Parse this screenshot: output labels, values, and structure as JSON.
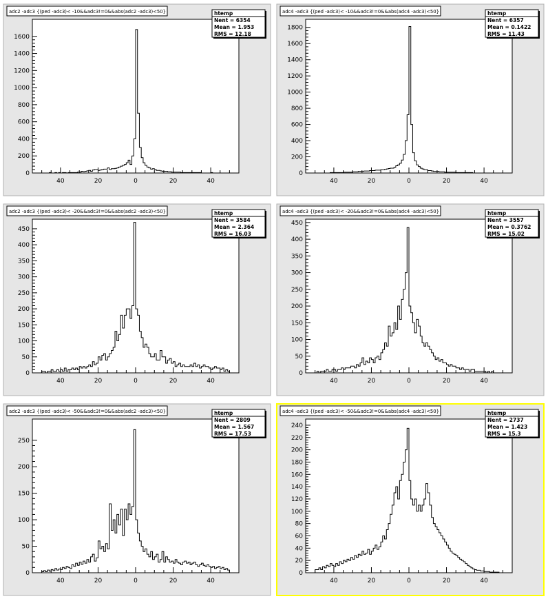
{
  "canvas": {
    "background": "#ffffff",
    "pad_fill": "#e6e6e6",
    "frame_fill": "#ffffff",
    "line_color": "#000000",
    "selected_border": "#ffff00"
  },
  "chart_data": [
    {
      "type": "histogram",
      "title": "adc2 -adc3 {(ped -adc3)< -10&&adc3!=0&&abs(adc2 -adc3)<50}",
      "stats": {
        "name": "htemp",
        "entries": "6354",
        "mean": "1.953",
        "rms": "12.18"
      },
      "xlim": [
        -55,
        55
      ],
      "ylim": [
        0,
        1800
      ],
      "xticks": [
        -40,
        -20,
        0,
        20,
        40
      ],
      "xtick_labels": [
        "40",
        "20",
        "0",
        "20",
        "40"
      ],
      "yticks": [
        0,
        200,
        400,
        600,
        800,
        1000,
        1200,
        1400,
        1600
      ],
      "bins": {
        "start": -50,
        "width": 1,
        "values": [
          0,
          0,
          0,
          0,
          5,
          0,
          0,
          5,
          0,
          5,
          0,
          5,
          5,
          0,
          5,
          5,
          5,
          5,
          5,
          10,
          10,
          20,
          15,
          20,
          25,
          30,
          20,
          35,
          40,
          40,
          30,
          35,
          40,
          45,
          45,
          60,
          40,
          50,
          50,
          55,
          60,
          70,
          80,
          90,
          100,
          120,
          150,
          100,
          200,
          400,
          1680,
          700,
          300,
          180,
          120,
          90,
          70,
          60,
          45,
          50,
          40,
          30,
          30,
          25,
          20,
          20,
          20,
          15,
          15,
          10,
          10,
          10,
          10,
          10,
          5,
          5,
          5,
          5,
          5,
          5,
          5,
          5,
          5,
          5,
          5,
          0,
          0,
          0,
          0,
          0,
          5,
          0,
          0,
          0,
          0,
          0,
          0,
          0,
          0,
          0
        ]
      }
    },
    {
      "type": "histogram",
      "title": "adc4 -adc3 {(ped -adc3)< -10&&adc3!=0&&abs(adc4 -adc3)<50}",
      "stats": {
        "name": "htemp",
        "entries": "6357",
        "mean": "0.1422",
        "rms": "11.43"
      },
      "xlim": [
        -55,
        55
      ],
      "ylim": [
        0,
        1900
      ],
      "xticks": [
        -40,
        -20,
        0,
        20,
        40
      ],
      "xtick_labels": [
        "40",
        "20",
        "0",
        "20",
        "40"
      ],
      "yticks": [
        0,
        200,
        400,
        600,
        800,
        1000,
        1200,
        1400,
        1600,
        1800
      ],
      "bins": {
        "start": -50,
        "width": 1,
        "values": [
          0,
          0,
          0,
          0,
          0,
          0,
          0,
          0,
          5,
          5,
          5,
          5,
          5,
          5,
          5,
          10,
          10,
          10,
          10,
          10,
          15,
          15,
          15,
          20,
          20,
          20,
          25,
          25,
          25,
          30,
          30,
          30,
          35,
          35,
          35,
          40,
          40,
          45,
          50,
          55,
          60,
          60,
          70,
          90,
          100,
          120,
          160,
          230,
          400,
          720,
          1810,
          600,
          250,
          150,
          100,
          80,
          60,
          50,
          40,
          40,
          30,
          30,
          25,
          20,
          20,
          20,
          15,
          15,
          15,
          10,
          10,
          10,
          10,
          10,
          10,
          5,
          5,
          5,
          5,
          5,
          5,
          5,
          5,
          5,
          0,
          0,
          0,
          0,
          0,
          0,
          0,
          0,
          0,
          0,
          0,
          0,
          0,
          0,
          0,
          0
        ]
      }
    },
    {
      "type": "histogram",
      "title": "adc2 -adc3 {(ped -adc3)< -20&&adc3!=0&&abs(adc2 -adc3)<50}",
      "stats": {
        "name": "htemp",
        "entries": "3584",
        "mean": "2.364",
        "rms": "16.03"
      },
      "xlim": [
        -55,
        55
      ],
      "ylim": [
        0,
        480
      ],
      "xticks": [
        -40,
        -20,
        0,
        20,
        40
      ],
      "xtick_labels": [
        "40",
        "20",
        "0",
        "20",
        "40"
      ],
      "yticks": [
        0,
        50,
        100,
        150,
        200,
        250,
        300,
        350,
        400,
        450
      ],
      "bins": {
        "start": -50,
        "width": 1,
        "values": [
          5,
          5,
          0,
          5,
          5,
          10,
          5,
          5,
          10,
          5,
          10,
          5,
          15,
          5,
          10,
          10,
          15,
          10,
          15,
          10,
          20,
          15,
          20,
          15,
          20,
          25,
          20,
          35,
          25,
          30,
          50,
          40,
          55,
          60,
          40,
          50,
          60,
          70,
          80,
          130,
          100,
          120,
          180,
          140,
          180,
          200,
          200,
          170,
          210,
          470,
          200,
          180,
          130,
          110,
          80,
          90,
          80,
          60,
          50,
          50,
          60,
          40,
          40,
          70,
          50,
          50,
          30,
          40,
          45,
          30,
          35,
          20,
          25,
          30,
          20,
          25,
          20,
          20,
          20,
          25,
          20,
          30,
          20,
          25,
          15,
          20,
          25,
          20,
          20,
          15,
          10,
          15,
          20,
          15,
          15,
          10,
          15,
          5,
          10,
          5
        ]
      }
    },
    {
      "type": "histogram",
      "title": "adc4 -adc3 {(ped -adc3)< -20&&adc3!=0&&abs(adc4 -adc3)<50}",
      "stats": {
        "name": "htemp",
        "entries": "3557",
        "mean": "0.3762",
        "rms": "15.02"
      },
      "xlim": [
        -55,
        55
      ],
      "ylim": [
        0,
        460
      ],
      "xticks": [
        -40,
        -20,
        0,
        20,
        40
      ],
      "xtick_labels": [
        "40",
        "20",
        "0",
        "20",
        "40"
      ],
      "yticks": [
        0,
        50,
        100,
        150,
        200,
        250,
        300,
        350,
        400,
        450
      ],
      "bins": {
        "start": -50,
        "width": 1,
        "values": [
          0,
          5,
          0,
          5,
          5,
          5,
          10,
          5,
          5,
          10,
          10,
          5,
          10,
          10,
          15,
          10,
          15,
          15,
          15,
          20,
          20,
          15,
          25,
          20,
          30,
          45,
          25,
          35,
          30,
          45,
          40,
          30,
          45,
          50,
          40,
          60,
          70,
          90,
          80,
          140,
          110,
          120,
          150,
          130,
          200,
          160,
          220,
          250,
          300,
          435,
          200,
          180,
          150,
          120,
          160,
          140,
          110,
          90,
          80,
          90,
          80,
          70,
          60,
          50,
          40,
          45,
          35,
          40,
          30,
          30,
          25,
          20,
          25,
          20,
          20,
          15,
          15,
          10,
          15,
          10,
          10,
          10,
          5,
          10,
          10,
          5,
          5,
          5,
          5,
          5,
          5,
          0,
          5,
          0,
          5,
          0,
          0,
          0,
          0,
          0
        ]
      }
    },
    {
      "type": "histogram",
      "title": "adc2 -adc3 {(ped -adc3)< -50&&adc3!=0&&abs(adc2 -adc3)<50}",
      "stats": {
        "name": "htemp",
        "entries": "2809",
        "mean": "1.567",
        "rms": "17.53"
      },
      "xlim": [
        -55,
        55
      ],
      "ylim": [
        0,
        290
      ],
      "xticks": [
        -40,
        -20,
        0,
        20,
        40
      ],
      "xtick_labels": [
        "40",
        "20",
        "0",
        "20",
        "40"
      ],
      "yticks": [
        0,
        50,
        100,
        150,
        200,
        250
      ],
      "bins": {
        "start": -50,
        "width": 1,
        "values": [
          2,
          4,
          2,
          5,
          3,
          6,
          4,
          8,
          5,
          7,
          6,
          10,
          8,
          12,
          10,
          8,
          15,
          12,
          18,
          14,
          20,
          16,
          22,
          18,
          25,
          20,
          30,
          35,
          22,
          28,
          60,
          45,
          50,
          40,
          55,
          45,
          130,
          80,
          100,
          75,
          110,
          90,
          120,
          70,
          120,
          100,
          130,
          110,
          125,
          270,
          100,
          75,
          60,
          50,
          40,
          45,
          35,
          30,
          40,
          25,
          30,
          35,
          20,
          25,
          40,
          20,
          30,
          25,
          20,
          22,
          18,
          25,
          20,
          18,
          15,
          20,
          22,
          18,
          20,
          15,
          18,
          20,
          15,
          12,
          15,
          18,
          14,
          12,
          15,
          12,
          10,
          12,
          8,
          10,
          12,
          8,
          10,
          6,
          8,
          5
        ]
      }
    },
    {
      "type": "histogram",
      "title": "adc4 -adc3 {(ped -adc3)< -50&&adc3!=0&&abs(adc4 -adc3)<50}",
      "stats": {
        "name": "htemp",
        "entries": "2737",
        "mean": "1.423",
        "rms": "15.3"
      },
      "xlim": [
        -55,
        55
      ],
      "ylim": [
        0,
        250
      ],
      "xticks": [
        -40,
        -20,
        0,
        20,
        40
      ],
      "xtick_labels": [
        "40",
        "20",
        "0",
        "20",
        "40"
      ],
      "yticks": [
        0,
        20,
        40,
        60,
        80,
        100,
        120,
        140,
        160,
        180,
        200,
        220,
        240
      ],
      "bins": {
        "start": -50,
        "width": 1,
        "values": [
          5,
          5,
          8,
          5,
          10,
          8,
          12,
          10,
          15,
          12,
          10,
          15,
          12,
          18,
          15,
          20,
          18,
          22,
          20,
          25,
          22,
          28,
          25,
          30,
          28,
          35,
          30,
          32,
          38,
          30,
          35,
          40,
          45,
          38,
          42,
          50,
          60,
          55,
          70,
          80,
          95,
          110,
          130,
          140,
          120,
          150,
          160,
          180,
          200,
          235,
          150,
          120,
          110,
          120,
          100,
          110,
          100,
          110,
          120,
          145,
          130,
          110,
          90,
          80,
          75,
          70,
          65,
          60,
          55,
          50,
          45,
          40,
          35,
          32,
          30,
          28,
          25,
          22,
          20,
          18,
          15,
          12,
          10,
          8,
          6,
          5,
          4,
          4,
          3,
          3,
          2,
          2,
          2,
          1,
          1,
          1,
          1,
          1,
          0,
          0
        ]
      }
    }
  ]
}
